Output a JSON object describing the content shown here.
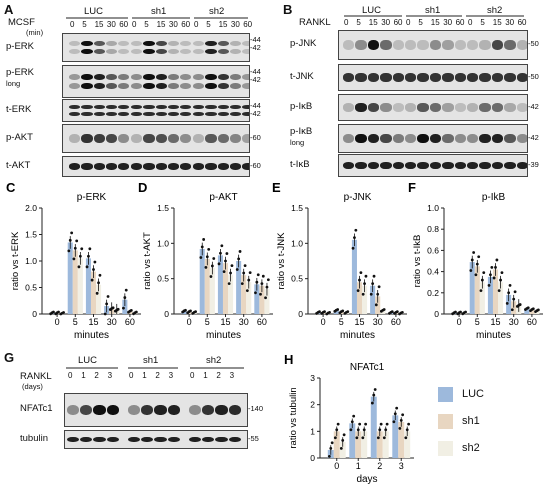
{
  "panels": {
    "A": {
      "letter": "A",
      "stim": "MCSF",
      "unit": "(min)",
      "groups": [
        "LUC",
        "sh1",
        "sh2"
      ],
      "times": [
        "0",
        "5",
        "15",
        "30",
        "60"
      ],
      "rows": [
        {
          "label": "p-ERK",
          "sub": "",
          "mw": [
            "44",
            "42"
          ]
        },
        {
          "label": "p-ERK",
          "sub": "long",
          "mw": [
            "44",
            "42"
          ]
        },
        {
          "label": "t-ERK",
          "sub": "",
          "mw": [
            "44",
            "42"
          ]
        },
        {
          "label": "p-AKT",
          "sub": "",
          "mw": [
            "60"
          ]
        },
        {
          "label": "t-AKT",
          "sub": "",
          "mw": [
            "60"
          ]
        }
      ]
    },
    "B": {
      "letter": "B",
      "stim": "RANKL",
      "unit": "",
      "groups": [
        "LUC",
        "sh1",
        "sh2"
      ],
      "times": [
        "0",
        "5",
        "15",
        "30",
        "60"
      ],
      "rows": [
        {
          "label": "p-JNK",
          "sub": "",
          "mw": [
            "50"
          ]
        },
        {
          "label": "t-JNK",
          "sub": "",
          "mw": [
            "50"
          ]
        },
        {
          "label": "p-IκB",
          "sub": "",
          "mw": [
            "42"
          ]
        },
        {
          "label": "p-IκB",
          "sub": "long",
          "mw": [
            "42"
          ]
        },
        {
          "label": "t-IκB",
          "sub": "",
          "mw": [
            "39"
          ]
        }
      ]
    },
    "G": {
      "letter": "G",
      "stim": "RANKL",
      "unit": "(days)",
      "groups": [
        "LUC",
        "sh1",
        "sh2"
      ],
      "times": [
        "0",
        "1",
        "2",
        "3"
      ],
      "rows": [
        {
          "label": "NFATc1",
          "sub": "",
          "mw": [
            "140"
          ]
        },
        {
          "label": "tubulin",
          "sub": "",
          "mw": [
            "55"
          ]
        }
      ]
    }
  },
  "colors": {
    "LUC": "#9db9dc",
    "sh1": "#e8d6c1",
    "sh2": "#f1efe4"
  },
  "legend": [
    "LUC",
    "sh1",
    "sh2"
  ],
  "chart_data": [
    {
      "id": "C",
      "letter": "C",
      "type": "bar",
      "title": "p-ERK",
      "ylabel": "ratio vs t-ERK",
      "xlabel": "minutes",
      "categories": [
        "0",
        "5",
        "15",
        "30",
        "60"
      ],
      "ylim": [
        0,
        2.0
      ],
      "yticks": [
        "0",
        "0.5",
        "1.0",
        "1.5",
        "2.0"
      ],
      "series": [
        {
          "name": "LUC",
          "values": [
            0.02,
            1.35,
            1.05,
            0.15,
            0.27
          ]
        },
        {
          "name": "sh1",
          "values": [
            0.02,
            1.2,
            0.8,
            0.1,
            0.05
          ]
        },
        {
          "name": "sh2",
          "values": [
            0.01,
            1.05,
            0.55,
            0.07,
            0.02
          ]
        }
      ]
    },
    {
      "id": "D",
      "letter": "D",
      "type": "bar",
      "title": "p-AKT",
      "ylabel": "ratio vs t-AKT",
      "xlabel": "minutes",
      "categories": [
        "0",
        "5",
        "15",
        "30",
        "60"
      ],
      "ylim": [
        0,
        1.5
      ],
      "yticks": [
        "0",
        "0.5",
        "1.0",
        "1.5"
      ],
      "series": [
        {
          "name": "LUC",
          "values": [
            0.04,
            0.92,
            0.83,
            0.75,
            0.42
          ]
        },
        {
          "name": "sh1",
          "values": [
            0.03,
            0.78,
            0.72,
            0.55,
            0.4
          ]
        },
        {
          "name": "sh2",
          "values": [
            0.02,
            0.65,
            0.55,
            0.45,
            0.35
          ]
        }
      ]
    },
    {
      "id": "E",
      "letter": "E",
      "type": "bar",
      "title": "p-JNK",
      "ylabel": "ratio vs t-JNK",
      "xlabel": "minutes",
      "categories": [
        "0",
        "5",
        "15",
        "30",
        "60"
      ],
      "ylim": [
        0,
        1.5
      ],
      "yticks": [
        "0",
        "0.5",
        "1.0",
        "1.5"
      ],
      "series": [
        {
          "name": "LUC",
          "values": [
            0.02,
            0.05,
            1.05,
            0.4,
            0.02
          ]
        },
        {
          "name": "sh1",
          "values": [
            0.02,
            0.03,
            0.45,
            0.25,
            0.02
          ]
        },
        {
          "name": "sh2",
          "values": [
            0.01,
            0.02,
            0.4,
            0.05,
            0.01
          ]
        }
      ]
    },
    {
      "id": "F",
      "letter": "F",
      "type": "bar",
      "title": "p-IkB",
      "ylabel": "ratio vs t-IkB",
      "xlabel": "minutes",
      "categories": [
        "0",
        "5",
        "15",
        "30",
        "60"
      ],
      "ylim": [
        0,
        1.0
      ],
      "yticks": [
        "0",
        "0.2",
        "0.4",
        "0.6",
        "0.8",
        "1.0"
      ],
      "series": [
        {
          "name": "LUC",
          "values": [
            0.01,
            0.49,
            0.35,
            0.18,
            0.05
          ]
        },
        {
          "name": "sh1",
          "values": [
            0.01,
            0.45,
            0.42,
            0.12,
            0.04
          ]
        },
        {
          "name": "sh2",
          "values": [
            0.01,
            0.3,
            0.3,
            0.08,
            0.03
          ]
        }
      ]
    },
    {
      "id": "H",
      "letter": "H",
      "type": "bar",
      "title": "NFATc1",
      "ylabel": "ratio vs tubulin",
      "xlabel": "days",
      "categories": [
        "0",
        "1",
        "2",
        "3"
      ],
      "ylim": [
        0,
        3
      ],
      "yticks": [
        "0",
        "1",
        "2",
        "3"
      ],
      "series": [
        {
          "name": "LUC",
          "values": [
            0.3,
            1.3,
            2.3,
            1.6
          ]
        },
        {
          "name": "sh1",
          "values": [
            1.0,
            1.0,
            1.0,
            1.35
          ]
        },
        {
          "name": "sh2",
          "values": [
            0.6,
            1.0,
            1.0,
            1.0
          ]
        }
      ]
    }
  ]
}
